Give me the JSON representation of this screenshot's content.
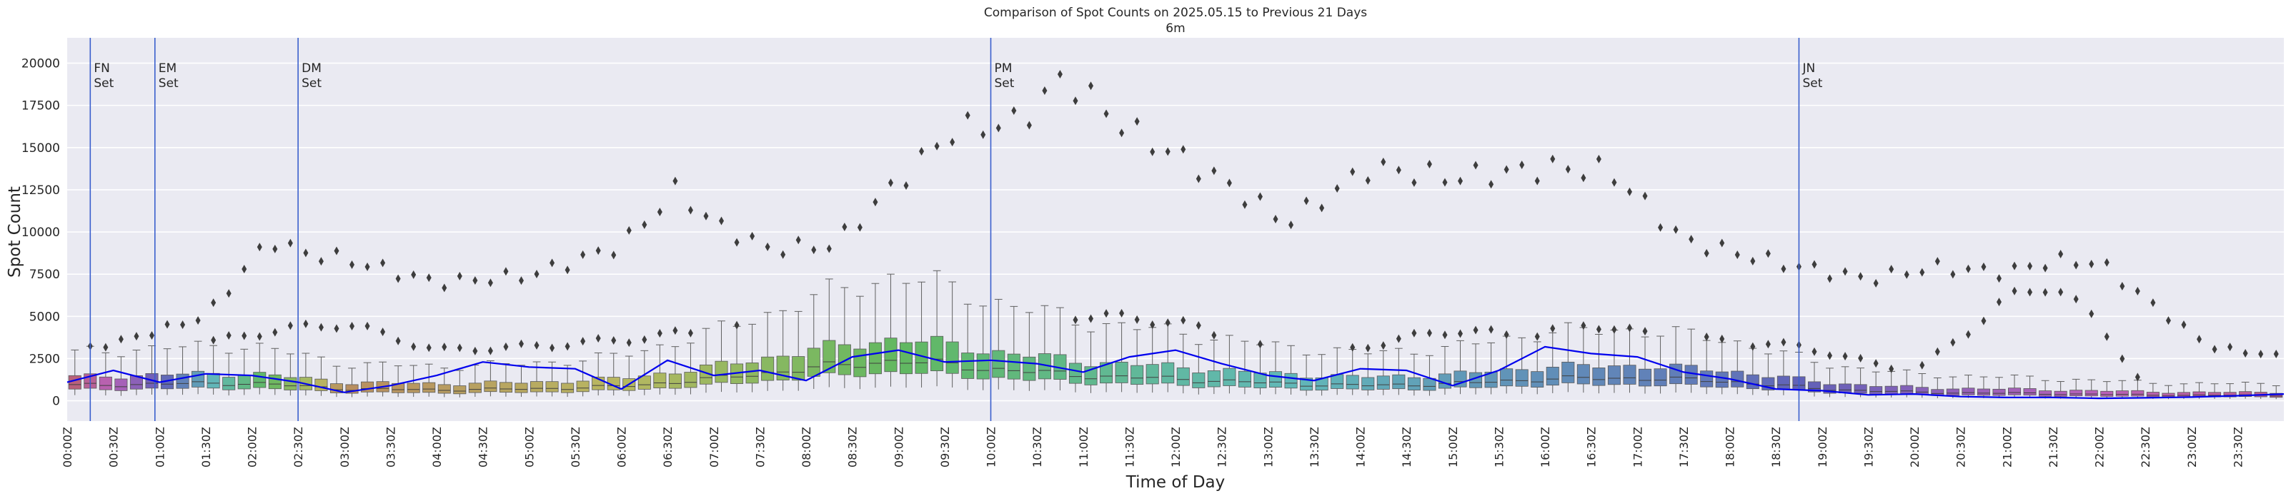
{
  "chart_data": {
    "type": "box",
    "title": "Comparison of Spot Counts on 2025.05.15 to Previous 21 Days",
    "subtitle": "6m",
    "xlabel": "Time of Day",
    "ylabel": "Spot Count",
    "ylim": [
      -1200,
      21500
    ],
    "yticks": [
      0,
      2500,
      5000,
      7500,
      10000,
      12500,
      15000,
      17500,
      20000
    ],
    "ytick_labels": [
      "0",
      "2500",
      "5000",
      "7500",
      "10000",
      "12500",
      "15000",
      "17500",
      "20000"
    ],
    "bin_minutes": 10,
    "x_labels": [
      "00:00Z",
      "00:30Z",
      "01:00Z",
      "01:30Z",
      "02:00Z",
      "02:30Z",
      "03:00Z",
      "03:30Z",
      "04:00Z",
      "04:30Z",
      "05:00Z",
      "05:30Z",
      "06:00Z",
      "06:30Z",
      "07:00Z",
      "07:30Z",
      "08:00Z",
      "08:30Z",
      "09:00Z",
      "09:30Z",
      "10:00Z",
      "10:30Z",
      "11:00Z",
      "11:30Z",
      "12:00Z",
      "12:30Z",
      "13:00Z",
      "13:30Z",
      "14:00Z",
      "14:30Z",
      "15:00Z",
      "15:30Z",
      "16:00Z",
      "16:30Z",
      "17:00Z",
      "17:30Z",
      "18:00Z",
      "18:30Z",
      "19:00Z",
      "19:30Z",
      "20:00Z",
      "20:30Z",
      "21:00Z",
      "21:30Z",
      "22:00Z",
      "22:30Z",
      "23:00Z",
      "23:30Z"
    ],
    "median_profile": {
      "hours": [
        0,
        1,
        2,
        3,
        4,
        5,
        6,
        7,
        8,
        9,
        10,
        11,
        12,
        13,
        14,
        15,
        16,
        17,
        18,
        19,
        20,
        21,
        22,
        23,
        24
      ],
      "values": [
        900,
        1000,
        1050,
        700,
        650,
        700,
        850,
        1300,
        1900,
        2400,
        1900,
        1500,
        1300,
        1050,
        900,
        1000,
        1300,
        1350,
        1150,
        700,
        500,
        450,
        380,
        320,
        330
      ]
    },
    "current_day": {
      "name": "2025.05.15",
      "color": "#0000ee",
      "hours": [
        0,
        0.5,
        1,
        1.5,
        2,
        2.5,
        3,
        3.5,
        4,
        4.5,
        5,
        5.5,
        6,
        6.5,
        7,
        7.5,
        8,
        8.5,
        9,
        9.5,
        10,
        10.5,
        11,
        11.5,
        12,
        12.5,
        13,
        13.5,
        14,
        14.5,
        15,
        15.5,
        16,
        16.5,
        17,
        17.5,
        18,
        18.5,
        19,
        19.5,
        20,
        20.5,
        21,
        21.5,
        22,
        22.5,
        23,
        23.5,
        24
      ],
      "values": [
        1100,
        1800,
        1100,
        1600,
        1500,
        1100,
        500,
        900,
        1500,
        2300,
        2000,
        1900,
        700,
        2400,
        1500,
        1800,
        1200,
        2600,
        3000,
        2300,
        2400,
        2200,
        1700,
        2600,
        3000,
        2200,
        1500,
        1200,
        1900,
        1800,
        900,
        1800,
        3200,
        2800,
        2600,
        1700,
        1300,
        700,
        600,
        350,
        400,
        250,
        200,
        200,
        150,
        180,
        220,
        300,
        400
      ]
    },
    "outlier_upper_envelope": {
      "hours": [
        0,
        0.7,
        1.5,
        2.2,
        2.5,
        3,
        4,
        5,
        6,
        6.6,
        7,
        7.6,
        8.3,
        9,
        9.6,
        10.3,
        10.8,
        11.5,
        12.2,
        12.8,
        13.2,
        14.1,
        15,
        16.1,
        16.7,
        17.5,
        18.5,
        19.5,
        20.2,
        21,
        21.5,
        22,
        22.6,
        23.2,
        24
      ],
      "values": [
        2800,
        3700,
        5000,
        9600,
        8800,
        8400,
        7000,
        7400,
        9200,
        12500,
        10500,
        9000,
        9200,
        13000,
        16000,
        16500,
        19200,
        16000,
        14000,
        12000,
        10500,
        13800,
        13200,
        13800,
        13600,
        9500,
        8200,
        7200,
        7900,
        7600,
        8300,
        8200,
        5600,
        3200,
        2600
      ]
    },
    "outlier_lower_band": {
      "hours": [
        0,
        1,
        2,
        3,
        4,
        5,
        6,
        7,
        8,
        8.6,
        9.2,
        9.8,
        10.5,
        11.2,
        12,
        12.8,
        13.5,
        14.2,
        15,
        15.8,
        16.5,
        17.2,
        18,
        18.8,
        19.4,
        20,
        20.5,
        21,
        21.5,
        22,
        22.5,
        23,
        24
      ],
      "values": [
        2500,
        2700,
        4000,
        4600,
        3000,
        3200,
        3600,
        4200,
        4500,
        4800,
        4700,
        4200,
        5200,
        5000,
        4700,
        3300,
        2600,
        3400,
        4200,
        3800,
        4600,
        3800,
        3500,
        3200,
        2400,
        1700,
        3800,
        6000,
        7000,
        4500,
        800,
        600,
        500
      ]
    },
    "vertical_markers": [
      {
        "hour": 0.25,
        "label_line1": "FN",
        "label_line2": "Set"
      },
      {
        "hour": 0.95,
        "label_line1": "EM",
        "label_line2": "Set"
      },
      {
        "hour": 2.5,
        "label_line1": "DM",
        "label_line2": "Set"
      },
      {
        "hour": 10.0,
        "label_line1": "PM",
        "label_line2": "Set"
      },
      {
        "hour": 18.75,
        "label_line1": "JN",
        "label_line2": "Set"
      }
    ],
    "colors": {
      "background": "#eaeaf2",
      "grid": "#ffffff",
      "marker_line": "#3a5fcd",
      "current_line": "#0000ee",
      "outlier": "#3d3d3d",
      "whisker": "#606060"
    },
    "grid": true
  }
}
